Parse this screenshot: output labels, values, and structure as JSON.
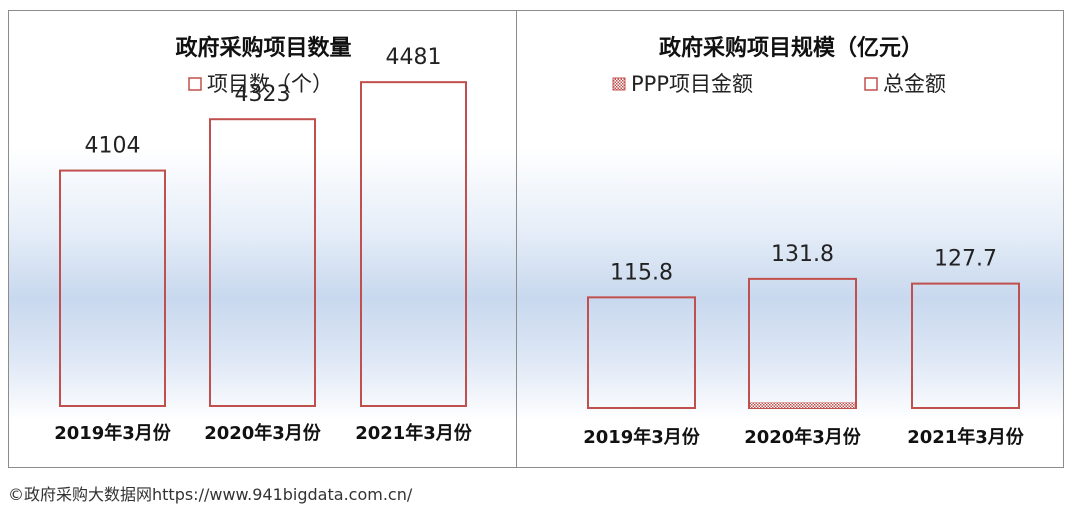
{
  "chart_data": [
    {
      "type": "bar",
      "title": "政府采购项目数量",
      "categories": [
        "2019年3月份",
        "2020年3月份",
        "2021年3月份"
      ],
      "series": [
        {
          "name": "项目数（个）",
          "values": [
            4104,
            4323,
            4481
          ]
        }
      ],
      "legend": "top-center",
      "ylim": [
        0,
        4481
      ],
      "grid": false
    },
    {
      "type": "bar",
      "title": "政府采购项目规模（亿元）",
      "categories": [
        "2019年3月份",
        "2020年3月份",
        "2021年3月份"
      ],
      "series": [
        {
          "name": "PPP项目金额",
          "values": [
            0,
            0.4,
            0
          ]
        },
        {
          "name": "总金额",
          "values": [
            115.8,
            131.8,
            127.7
          ]
        }
      ],
      "legend": "top-center",
      "ylim": [
        0,
        150
      ],
      "grid": false
    }
  ],
  "colors": {
    "bar_stroke": "#c0504d",
    "ppp_fill": "#c0504d"
  },
  "footer": {
    "source": "©政府采购大数据网https://www.941bigdata.com.cn/"
  }
}
